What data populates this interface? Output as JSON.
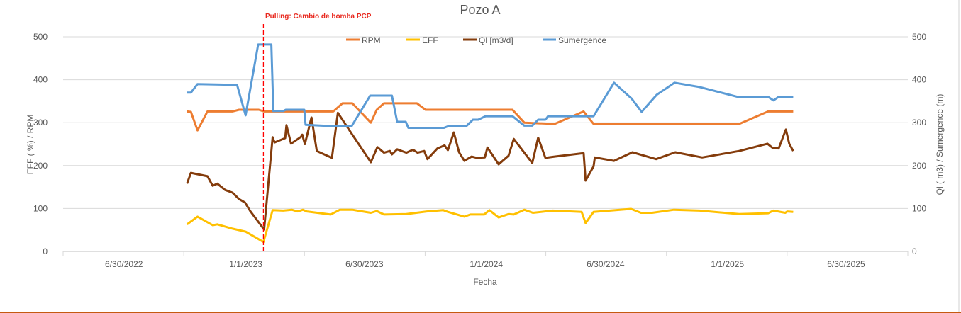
{
  "chart_data": {
    "type": "line",
    "title": "Pozo A",
    "xlabel": "Fecha",
    "ylabel_left": "EFF ( %) / RPM",
    "ylabel_right": "Ql ( m3) / Sumergence (m)",
    "x_units": "excel-date-serial",
    "xlim": [
      44654,
      45936
    ],
    "ylim_left": [
      0,
      500
    ],
    "ylim_right": [
      0,
      500
    ],
    "y_ticks": [
      "0",
      "100",
      "200",
      "300",
      "400",
      "500"
    ],
    "y_tick_values": [
      0,
      100,
      200,
      300,
      400,
      500
    ],
    "x_ticks": [
      {
        "label": "6/30/2022",
        "value": 44742
      },
      {
        "label": "1/1/2023",
        "value": 44927
      },
      {
        "label": "6/30/2023",
        "value": 45107
      },
      {
        "label": "1/1/2024",
        "value": 45292
      },
      {
        "label": "6/30/2024",
        "value": 45473
      },
      {
        "label": "1/1/2025",
        "value": 45658
      },
      {
        "label": "6/30/2025",
        "value": 45838
      }
    ],
    "grid": true,
    "legend_position": "top-center",
    "annotation": {
      "text": "Pulling: Cambio de bomba PCP",
      "x": 44958,
      "color": "#e8281e"
    },
    "series": [
      {
        "name": "RPM",
        "axis": "left",
        "color": "#ed7d31",
        "points": [
          [
            44842,
            326
          ],
          [
            44848,
            325
          ],
          [
            44858,
            282
          ],
          [
            44873,
            326
          ],
          [
            44911,
            326
          ],
          [
            44921,
            330
          ],
          [
            44951,
            330
          ],
          [
            44959,
            326
          ],
          [
            45064,
            326
          ],
          [
            45078,
            345
          ],
          [
            45093,
            345
          ],
          [
            45121,
            300
          ],
          [
            45130,
            330
          ],
          [
            45141,
            345
          ],
          [
            45191,
            345
          ],
          [
            45204,
            330
          ],
          [
            45336,
            330
          ],
          [
            45354,
            300
          ],
          [
            45400,
            297
          ],
          [
            45444,
            326
          ],
          [
            45459,
            297
          ],
          [
            45680,
            297
          ],
          [
            45724,
            326
          ],
          [
            45762,
            326
          ]
        ]
      },
      {
        "name": "EFF",
        "axis": "left",
        "color": "#ffc000",
        "points": [
          [
            44842,
            63
          ],
          [
            44858,
            81
          ],
          [
            44881,
            61
          ],
          [
            44888,
            63
          ],
          [
            44911,
            53
          ],
          [
            44931,
            46
          ],
          [
            44958,
            22
          ],
          [
            44972,
            96
          ],
          [
            44988,
            95
          ],
          [
            45001,
            97
          ],
          [
            45010,
            93
          ],
          [
            45018,
            97
          ],
          [
            45024,
            93
          ],
          [
            45060,
            86
          ],
          [
            45074,
            97
          ],
          [
            45093,
            97
          ],
          [
            45121,
            90
          ],
          [
            45130,
            94
          ],
          [
            45141,
            86
          ],
          [
            45175,
            87
          ],
          [
            45206,
            93
          ],
          [
            45231,
            96
          ],
          [
            45238,
            92
          ],
          [
            45263,
            81
          ],
          [
            45272,
            86
          ],
          [
            45293,
            86
          ],
          [
            45301,
            96
          ],
          [
            45315,
            79
          ],
          [
            45330,
            87
          ],
          [
            45338,
            86
          ],
          [
            45354,
            97
          ],
          [
            45367,
            90
          ],
          [
            45397,
            95
          ],
          [
            45441,
            92
          ],
          [
            45447,
            66
          ],
          [
            45459,
            92
          ],
          [
            45516,
            99
          ],
          [
            45531,
            90
          ],
          [
            45548,
            90
          ],
          [
            45581,
            97
          ],
          [
            45620,
            95
          ],
          [
            45680,
            87
          ],
          [
            45724,
            89
          ],
          [
            45732,
            95
          ],
          [
            45750,
            90
          ],
          [
            45753,
            93
          ],
          [
            45762,
            92
          ]
        ]
      },
      {
        "name": "Ql [m3/d]",
        "axis": "right",
        "color": "#843c0c",
        "points": [
          [
            44842,
            158
          ],
          [
            44848,
            183
          ],
          [
            44873,
            175
          ],
          [
            44881,
            153
          ],
          [
            44888,
            158
          ],
          [
            44900,
            143
          ],
          [
            44911,
            137
          ],
          [
            44921,
            122
          ],
          [
            44930,
            114
          ],
          [
            44938,
            94
          ],
          [
            44959,
            51
          ],
          [
            44972,
            266
          ],
          [
            44975,
            254
          ],
          [
            44991,
            264
          ],
          [
            44993,
            294
          ],
          [
            45000,
            251
          ],
          [
            45015,
            267
          ],
          [
            45017,
            272
          ],
          [
            45021,
            250
          ],
          [
            45031,
            312
          ],
          [
            45039,
            234
          ],
          [
            45062,
            218
          ],
          [
            45071,
            323
          ],
          [
            45093,
            272
          ],
          [
            45121,
            208
          ],
          [
            45131,
            243
          ],
          [
            45141,
            230
          ],
          [
            45150,
            234
          ],
          [
            45153,
            226
          ],
          [
            45161,
            238
          ],
          [
            45175,
            230
          ],
          [
            45185,
            237
          ],
          [
            45192,
            230
          ],
          [
            45202,
            234
          ],
          [
            45207,
            215
          ],
          [
            45222,
            240
          ],
          [
            45233,
            247
          ],
          [
            45238,
            236
          ],
          [
            45247,
            277
          ],
          [
            45255,
            231
          ],
          [
            45263,
            211
          ],
          [
            45274,
            221
          ],
          [
            45282,
            218
          ],
          [
            45294,
            219
          ],
          [
            45298,
            242
          ],
          [
            45315,
            203
          ],
          [
            45330,
            223
          ],
          [
            45338,
            262
          ],
          [
            45366,
            206
          ],
          [
            45375,
            265
          ],
          [
            45386,
            218
          ],
          [
            45400,
            221
          ],
          [
            45444,
            229
          ],
          [
            45447,
            165
          ],
          [
            45459,
            198
          ],
          [
            45461,
            219
          ],
          [
            45490,
            211
          ],
          [
            45518,
            231
          ],
          [
            45554,
            215
          ],
          [
            45583,
            231
          ],
          [
            45624,
            219
          ],
          [
            45680,
            234
          ],
          [
            45723,
            251
          ],
          [
            45731,
            241
          ],
          [
            45740,
            240
          ],
          [
            45751,
            284
          ],
          [
            45756,
            251
          ],
          [
            45762,
            234
          ]
        ]
      },
      {
        "name": "Sumergence",
        "axis": "right",
        "color": "#5b9bd5",
        "points": [
          [
            44842,
            370
          ],
          [
            44848,
            370
          ],
          [
            44858,
            390
          ],
          [
            44918,
            388
          ],
          [
            44931,
            317
          ],
          [
            44950,
            482
          ],
          [
            44970,
            482
          ],
          [
            44973,
            327
          ],
          [
            44988,
            327
          ],
          [
            44992,
            330
          ],
          [
            45020,
            330
          ],
          [
            45022,
            295
          ],
          [
            45060,
            292
          ],
          [
            45092,
            292
          ],
          [
            45120,
            363
          ],
          [
            45153,
            363
          ],
          [
            45161,
            302
          ],
          [
            45174,
            302
          ],
          [
            45178,
            288
          ],
          [
            45232,
            288
          ],
          [
            45239,
            292
          ],
          [
            45266,
            292
          ],
          [
            45276,
            307
          ],
          [
            45284,
            307
          ],
          [
            45295,
            315
          ],
          [
            45336,
            315
          ],
          [
            45354,
            293
          ],
          [
            45366,
            293
          ],
          [
            45375,
            307
          ],
          [
            45386,
            307
          ],
          [
            45390,
            315
          ],
          [
            45459,
            315
          ],
          [
            45490,
            393
          ],
          [
            45517,
            356
          ],
          [
            45532,
            325
          ],
          [
            45555,
            365
          ],
          [
            45582,
            393
          ],
          [
            45620,
            383
          ],
          [
            45678,
            360
          ],
          [
            45724,
            360
          ],
          [
            45732,
            352
          ],
          [
            45740,
            360
          ],
          [
            45762,
            360
          ]
        ]
      }
    ]
  }
}
